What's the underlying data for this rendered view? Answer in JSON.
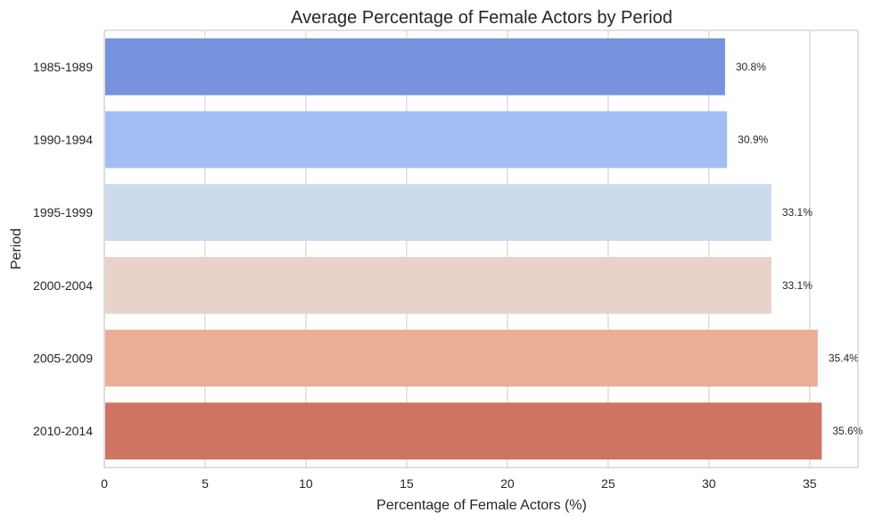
{
  "chart_data": {
    "type": "bar",
    "orientation": "horizontal",
    "title": "Average Percentage of Female Actors by Period",
    "xlabel": "Percentage of Female Actors (%)",
    "ylabel": "Period",
    "xlim": [
      0,
      37.4
    ],
    "xticks": [
      0,
      5,
      10,
      15,
      20,
      25,
      30,
      35
    ],
    "grid": "vertical",
    "categories": [
      "1985-1989",
      "1990-1994",
      "1995-1999",
      "2000-2004",
      "2005-2009",
      "2010-2014"
    ],
    "values": [
      30.8,
      30.9,
      33.1,
      33.1,
      35.4,
      35.6
    ],
    "data_labels": [
      "30.8%",
      "30.9%",
      "33.1%",
      "33.1%",
      "35.4%",
      "35.6%"
    ],
    "colors": [
      "#7793de",
      "#a3bef4",
      "#cdd9ec",
      "#e8d2c9",
      "#eaad95",
      "#cf7462"
    ]
  }
}
